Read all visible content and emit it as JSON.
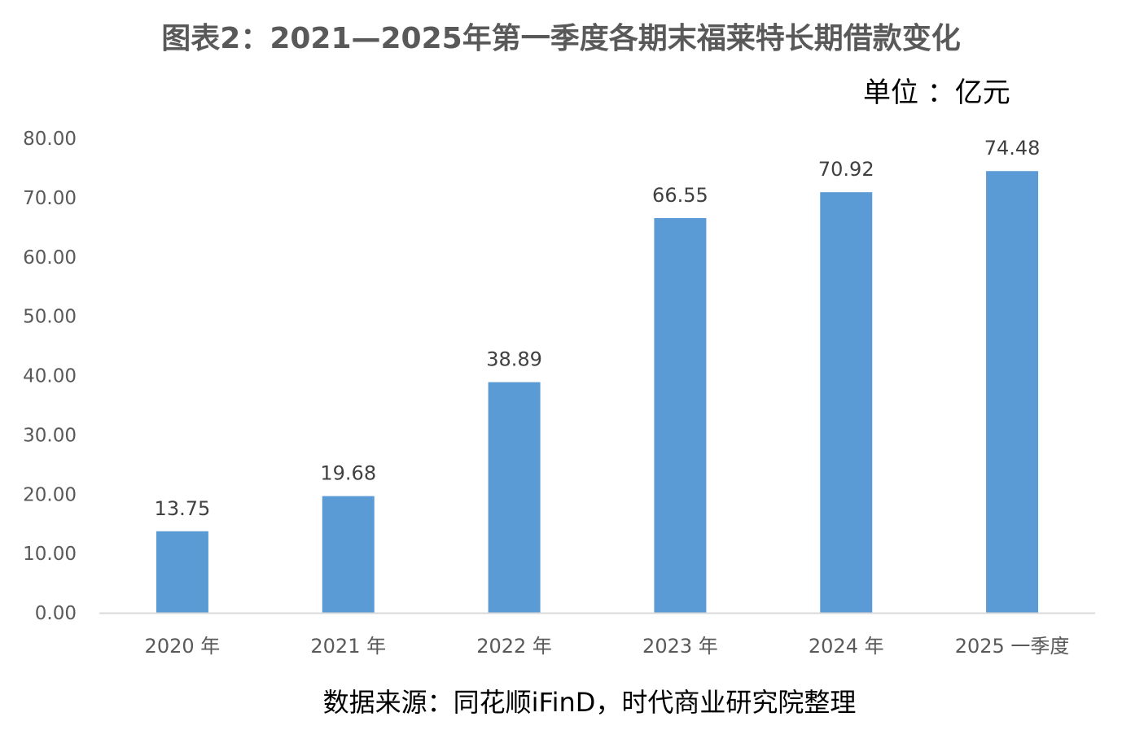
{
  "title": "图表2：2021—2025年第一季度各期末福莱特长期借款变化",
  "unit": "单位 ：亿元",
  "source": "数据来源：同花顺iFinD，时代商业研究院整理",
  "colors": {
    "bar": "#5B9BD5",
    "axis": "#D9D9D9",
    "text": "#595959"
  },
  "chart_data": {
    "type": "bar",
    "title": "图表2：2021—2025年第一季度各期末福莱特长期借款变化",
    "ylabel": "",
    "xlabel": "",
    "ylim": [
      0,
      80
    ],
    "yticks": [
      "0.00",
      "10.00",
      "20.00",
      "30.00",
      "40.00",
      "50.00",
      "60.00",
      "70.00",
      "80.00"
    ],
    "categories": [
      "2020 年",
      "2021 年",
      "2022 年",
      "2023 年",
      "2024 年",
      "2025 一季度"
    ],
    "values": [
      13.75,
      19.68,
      38.89,
      66.55,
      70.92,
      74.48
    ],
    "value_labels": [
      "13.75",
      "19.68",
      "38.89",
      "66.55",
      "70.92",
      "74.48"
    ],
    "grid": false,
    "legend": "none"
  }
}
